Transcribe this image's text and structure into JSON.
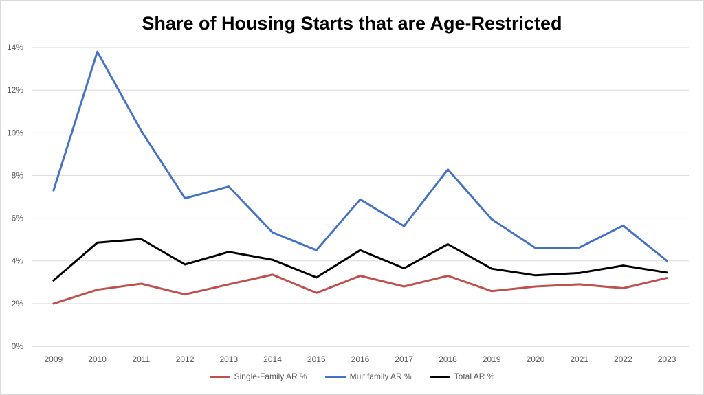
{
  "chart_data": {
    "type": "line",
    "title": "Share of Housing Starts that are Age-Restricted",
    "xlabel": "",
    "ylabel": "",
    "categories": [
      "2009",
      "2010",
      "2011",
      "2012",
      "2013",
      "2014",
      "2015",
      "2016",
      "2017",
      "2018",
      "2019",
      "2020",
      "2021",
      "2022",
      "2023"
    ],
    "y_ticks": [
      "0%",
      "2%",
      "4%",
      "6%",
      "8%",
      "10%",
      "12%",
      "14%"
    ],
    "ylim": [
      0,
      14
    ],
    "grid": true,
    "legend_position": "bottom",
    "series": [
      {
        "name": "Single-Family AR %",
        "color": "#c0504d",
        "values": [
          2.0,
          2.65,
          2.93,
          2.43,
          2.9,
          3.35,
          2.5,
          3.3,
          2.8,
          3.3,
          2.58,
          2.8,
          2.9,
          2.72,
          3.2
        ]
      },
      {
        "name": "Multifamily AR %",
        "color": "#4472c4",
        "values": [
          7.3,
          13.8,
          10.1,
          6.93,
          7.48,
          5.33,
          4.5,
          6.88,
          5.63,
          8.28,
          5.95,
          4.6,
          4.62,
          5.65,
          4.0
        ]
      },
      {
        "name": "Total AR %",
        "color": "#000000",
        "values": [
          3.08,
          4.85,
          5.02,
          3.83,
          4.42,
          4.05,
          3.22,
          4.5,
          3.65,
          4.78,
          3.63,
          3.32,
          3.43,
          3.78,
          3.45
        ]
      }
    ]
  }
}
